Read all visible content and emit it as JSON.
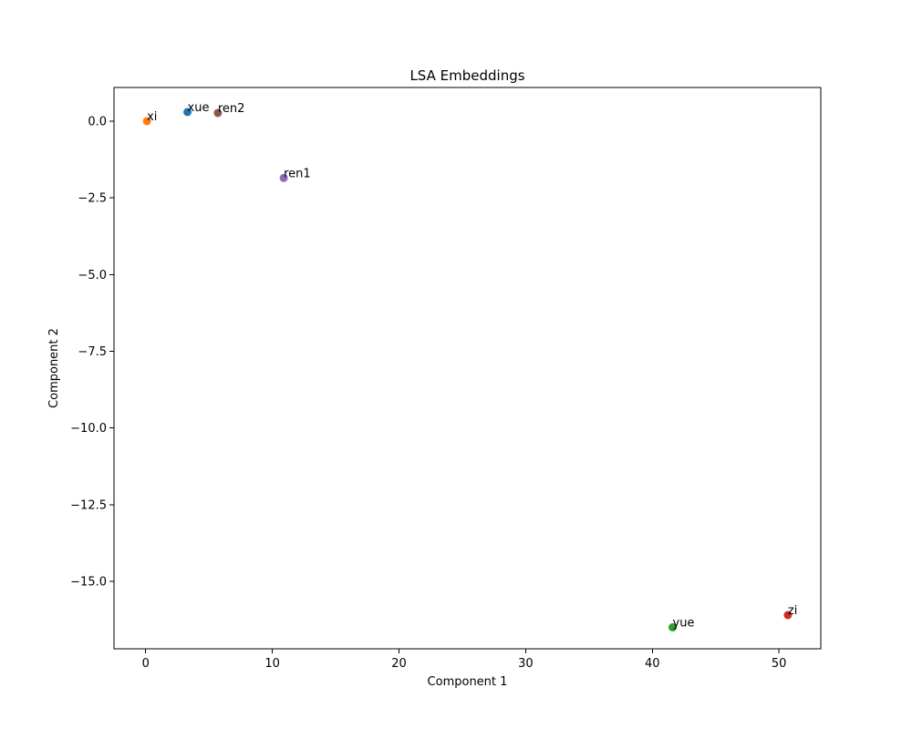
{
  "chart_data": {
    "type": "scatter",
    "title": "LSA Embeddings",
    "xlabel": "Component 1",
    "ylabel": "Component 2",
    "xlim": [
      -2.5,
      53.3
    ],
    "ylim": [
      -17.2,
      1.1
    ],
    "xticks": [
      0,
      10,
      20,
      30,
      40,
      50
    ],
    "yticks": [
      0.0,
      -2.5,
      -5.0,
      -7.5,
      -10.0,
      -12.5,
      -15.0
    ],
    "xtick_labels": [
      "0",
      "10",
      "20",
      "30",
      "40",
      "50"
    ],
    "ytick_labels": [
      "0.0",
      "−2.5",
      "−5.0",
      "−7.5",
      "−10.0",
      "−12.5",
      "−15.0"
    ],
    "grid": false,
    "points": [
      {
        "label": "xue",
        "x": 3.3,
        "y": 0.3,
        "color": "#1f77b4"
      },
      {
        "label": "xi",
        "x": 0.1,
        "y": 0.0,
        "color": "#ff7f0e"
      },
      {
        "label": "yue",
        "x": 41.6,
        "y": -16.5,
        "color": "#2ca02c"
      },
      {
        "label": "zi",
        "x": 50.7,
        "y": -16.1,
        "color": "#d62728"
      },
      {
        "label": "ren1",
        "x": 10.9,
        "y": -1.85,
        "color": "#9467bd"
      },
      {
        "label": "ren2",
        "x": 5.7,
        "y": 0.27,
        "color": "#8c564b"
      }
    ]
  }
}
